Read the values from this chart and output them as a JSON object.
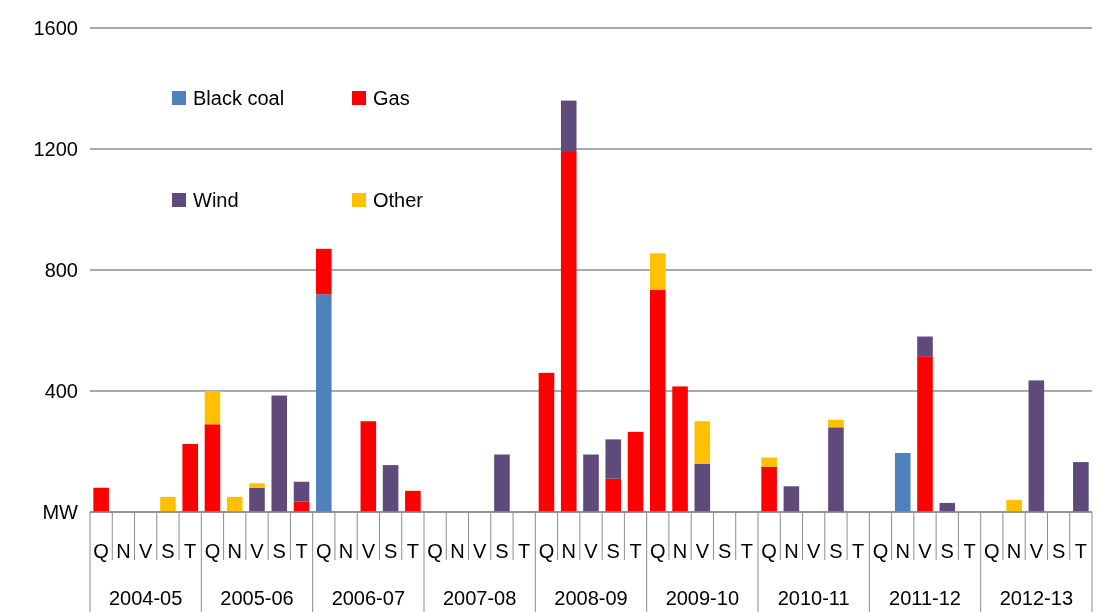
{
  "chart_data": {
    "type": "bar",
    "stacked": true,
    "categories": [
      "Q",
      "N",
      "V",
      "S",
      "T",
      "Q",
      "N",
      "V",
      "S",
      "T",
      "Q",
      "N",
      "V",
      "S",
      "T",
      "Q",
      "N",
      "V",
      "S",
      "T",
      "Q",
      "N",
      "V",
      "S",
      "T",
      "Q",
      "N",
      "V",
      "S",
      "T",
      "Q",
      "N",
      "V",
      "S",
      "T",
      "Q",
      "N",
      "V",
      "S",
      "T",
      "Q",
      "N",
      "V",
      "S",
      "T"
    ],
    "annotations": [
      "2004-05",
      "2005-06",
      "2006-07",
      "2007-08",
      "2008-09",
      "2009-10",
      "2010-11",
      "2011-12",
      "2012-13"
    ],
    "series": [
      {
        "name": "Black coal",
        "color": "#4f81bd",
        "values": [
          null,
          null,
          null,
          null,
          null,
          null,
          null,
          null,
          null,
          null,
          720,
          null,
          null,
          null,
          null,
          null,
          null,
          null,
          null,
          null,
          null,
          null,
          null,
          null,
          null,
          null,
          null,
          null,
          null,
          null,
          null,
          null,
          null,
          null,
          null,
          null,
          195,
          null,
          null,
          null,
          null,
          null,
          null,
          null,
          null
        ]
      },
      {
        "name": "Gas",
        "color": "#ff0000",
        "values": [
          80,
          null,
          null,
          null,
          225,
          290,
          null,
          null,
          null,
          35,
          150,
          null,
          300,
          null,
          70,
          null,
          null,
          null,
          null,
          null,
          460,
          1190,
          null,
          110,
          265,
          735,
          415,
          null,
          null,
          null,
          150,
          null,
          null,
          null,
          null,
          null,
          null,
          515,
          null,
          null,
          null,
          null,
          null,
          null,
          null
        ]
      },
      {
        "name": "Wind",
        "color": "#604a7b",
        "values": [
          null,
          null,
          null,
          null,
          null,
          null,
          null,
          80,
          385,
          65,
          null,
          null,
          null,
          155,
          null,
          null,
          null,
          null,
          190,
          null,
          null,
          170,
          190,
          130,
          null,
          null,
          null,
          160,
          null,
          null,
          null,
          85,
          null,
          280,
          null,
          null,
          null,
          65,
          30,
          null,
          null,
          null,
          435,
          null,
          165
        ]
      },
      {
        "name": "Other",
        "color": "#ffc000",
        "values": [
          null,
          null,
          null,
          50,
          null,
          110,
          50,
          15,
          null,
          null,
          null,
          null,
          null,
          null,
          null,
          null,
          null,
          null,
          null,
          null,
          null,
          null,
          null,
          null,
          null,
          120,
          null,
          140,
          null,
          null,
          30,
          null,
          null,
          25,
          null,
          null,
          null,
          null,
          null,
          null,
          null,
          40,
          null,
          null,
          null
        ]
      }
    ],
    "ylim": [
      0,
      1600
    ],
    "yticks": [
      {
        "value": 0,
        "label": "MW"
      },
      400,
      800,
      1200,
      1600
    ],
    "grid": "y",
    "legend": "top left"
  }
}
